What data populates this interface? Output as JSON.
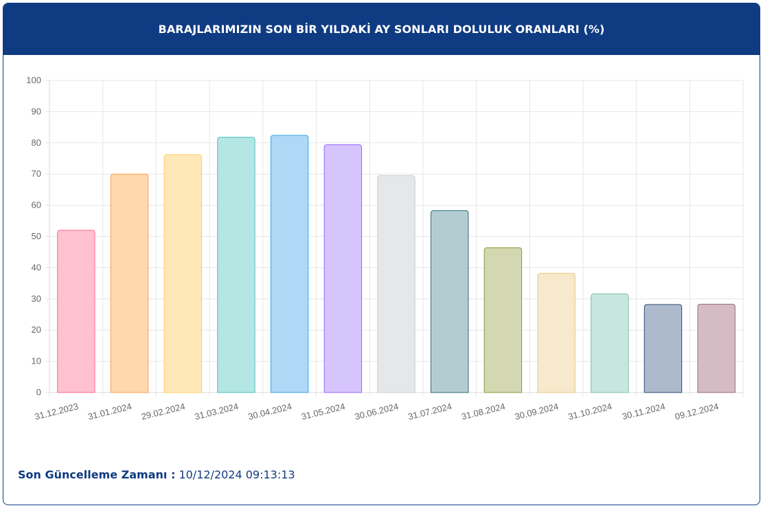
{
  "header": {
    "title": "BARAJLARIMIZIN SON BİR YILDAKİ AY SONLARI DOLULUK ORANLARI (%)"
  },
  "footer": {
    "label": "Son Güncelleme Zamanı :",
    "value": " 10/12/2024 09:13:13"
  },
  "colors": {
    "header_bg": "#0f3b82",
    "grid": "#e6e6e6",
    "axis_text": "#666666"
  },
  "chart_data": {
    "type": "bar",
    "title": "BARAJLARIMIZIN SON BİR YILDAKİ AY SONLARI DOLULUK ORANLARI (%)",
    "xlabel": "",
    "ylabel": "",
    "ylim": [
      0,
      100
    ],
    "yticks": [
      0,
      10,
      20,
      30,
      40,
      50,
      60,
      70,
      80,
      90,
      100
    ],
    "grid": true,
    "legend": "none",
    "categories": [
      "31.12.2023",
      "31.01.2024",
      "29.02.2024",
      "31.03.2024",
      "30.04.2024",
      "31.05.2024",
      "30.06.2024",
      "31.07.2024",
      "31.08.2024",
      "30.09.2024",
      "31.10.2024",
      "30.11.2024",
      "09.12.2024"
    ],
    "values": [
      52.0,
      70.0,
      76.2,
      81.8,
      82.4,
      79.4,
      69.5,
      58.3,
      46.4,
      38.2,
      31.6,
      28.2,
      28.3
    ],
    "bar_fill": [
      "#ffc0cf",
      "#ffd8b0",
      "#ffe8b8",
      "#b4e6e4",
      "#aed8f6",
      "#d6c4fc",
      "#e6e7e9",
      "#b3ccd2",
      "#d3d8b2",
      "#f6e9cc",
      "#c8e6df",
      "#adbacc",
      "#d5bcc4"
    ],
    "bar_stroke": [
      "#ff6b8f",
      "#ff9f40",
      "#ffcd56",
      "#4bc0c0",
      "#36a2eb",
      "#9966ff",
      "#c9cbcf",
      "#2f6b75",
      "#8a9a3a",
      "#e9c77a",
      "#7fbfae",
      "#2c4a73",
      "#9a6b7a"
    ]
  }
}
